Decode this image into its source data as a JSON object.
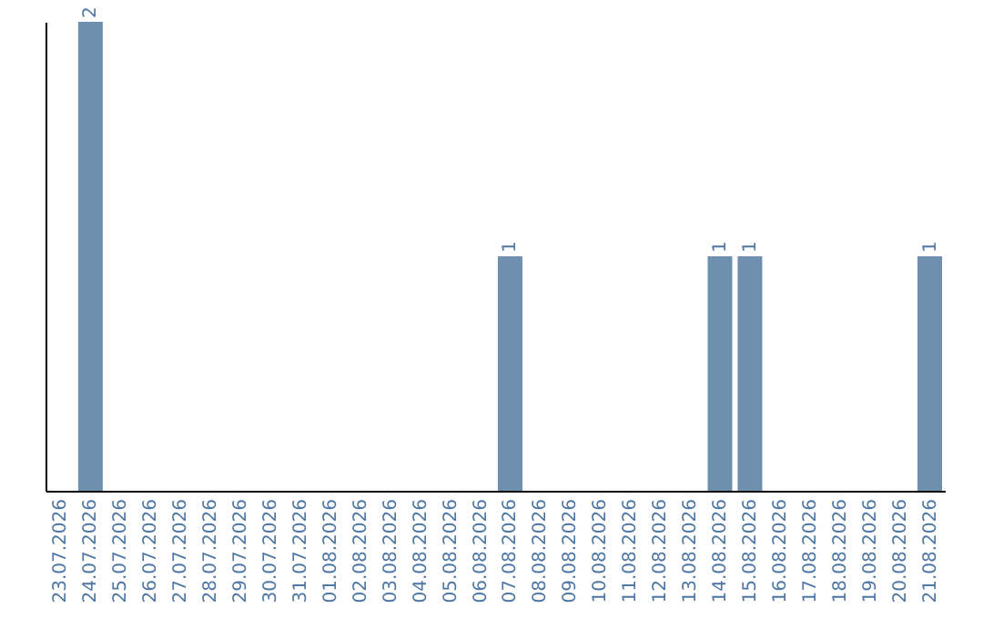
{
  "chart_data": {
    "type": "bar",
    "categories": [
      "23.07.2026",
      "24.07.2026",
      "25.07.2026",
      "26.07.2026",
      "27.07.2026",
      "28.07.2026",
      "29.07.2026",
      "30.07.2026",
      "31.07.2026",
      "01.08.2026",
      "02.08.2026",
      "03.08.2026",
      "04.08.2026",
      "05.08.2026",
      "06.08.2026",
      "07.08.2026",
      "08.08.2026",
      "09.08.2026",
      "10.08.2026",
      "11.08.2026",
      "12.08.2026",
      "13.08.2026",
      "14.08.2026",
      "15.08.2026",
      "16.08.2026",
      "17.08.2026",
      "18.08.2026",
      "19.08.2026",
      "20.08.2026",
      "21.08.2026"
    ],
    "values": [
      0,
      2,
      0,
      0,
      0,
      0,
      0,
      0,
      0,
      0,
      0,
      0,
      0,
      0,
      0,
      1,
      0,
      0,
      0,
      0,
      0,
      0,
      1,
      1,
      0,
      0,
      0,
      0,
      0,
      1
    ],
    "value_labels": [
      null,
      "2",
      null,
      null,
      null,
      null,
      null,
      null,
      null,
      null,
      null,
      null,
      null,
      null,
      null,
      "1",
      null,
      null,
      null,
      null,
      null,
      null,
      "1",
      "1",
      null,
      null,
      null,
      null,
      null,
      "1"
    ],
    "color": "#6e8fad",
    "tick_labels": "x"
  }
}
